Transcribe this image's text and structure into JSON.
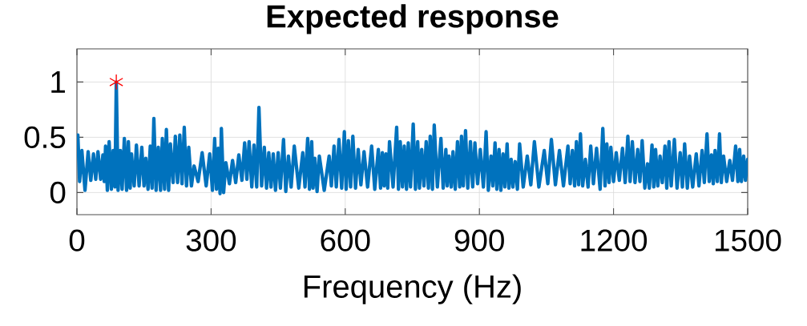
{
  "chart_data": {
    "type": "line",
    "title": "Expected response",
    "xlabel": "Frequency (Hz)",
    "xlim": [
      0,
      1500
    ],
    "ylim": [
      -0.2,
      1.3
    ],
    "xticks": [
      0,
      300,
      600,
      900,
      1200,
      1500
    ],
    "yticks": [
      0,
      0.5,
      1
    ],
    "grid": true,
    "series": [
      {
        "color": "#0072bd",
        "x": [
          0,
          2,
          6,
          11,
          18,
          25,
          31,
          37,
          42,
          47,
          53,
          58,
          61,
          64,
          68,
          72,
          77,
          81,
          85,
          88,
          92,
          97,
          101,
          106,
          111,
          115,
          119,
          122,
          128,
          133,
          139,
          145,
          150,
          154,
          159,
          164,
          168,
          172,
          177,
          182,
          187,
          191,
          196,
          200,
          205,
          209,
          215,
          220,
          225,
          230,
          235,
          240,
          245,
          250,
          256,
          262,
          271,
          280,
          289,
          297,
          303,
          308,
          312,
          316,
          320,
          323,
          328,
          333,
          341,
          348,
          355,
          362,
          369,
          375,
          380,
          385,
          391,
          396,
          402,
          407,
          413,
          419,
          424,
          429,
          434,
          439,
          444,
          450,
          455,
          462,
          467,
          473,
          479,
          486,
          496,
          505,
          510,
          516,
          520,
          525,
          528,
          532,
          537,
          542,
          553,
          564,
          569,
          575,
          580,
          586,
          592,
          598,
          602,
          607,
          612,
          617,
          623,
          629,
          635,
          642,
          650,
          659,
          666,
          674,
          679,
          683,
          687,
          691,
          695,
          699,
          707,
          715,
          719,
          723,
          728,
          732,
          737,
          741,
          746,
          752,
          757,
          762,
          766,
          771,
          776,
          781,
          786,
          790,
          795,
          799,
          806,
          814,
          819,
          825,
          828,
          832,
          837,
          841,
          846,
          851,
          856,
          860,
          864,
          869,
          874,
          880,
          885,
          890,
          896,
          902,
          909,
          915,
          920,
          926,
          930,
          935,
          939,
          944,
          948,
          953,
          957,
          962,
          966,
          971,
          975,
          980,
          985,
          990,
          998,
          1007,
          1015,
          1023,
          1033,
          1045,
          1053,
          1061,
          1070,
          1079,
          1088,
          1098,
          1103,
          1108,
          1113,
          1117,
          1122,
          1126,
          1131,
          1137,
          1143,
          1149,
          1155,
          1162,
          1170,
          1176,
          1181,
          1185,
          1190,
          1194,
          1200,
          1206,
          1213,
          1220,
          1226,
          1232,
          1237,
          1242,
          1248,
          1254,
          1259,
          1264,
          1270,
          1276,
          1280,
          1286,
          1290,
          1294,
          1299,
          1304,
          1309,
          1315,
          1319,
          1324,
          1329,
          1336,
          1342,
          1349,
          1354,
          1359,
          1365,
          1370,
          1377,
          1385,
          1391,
          1398,
          1403,
          1409,
          1414,
          1419,
          1423,
          1427,
          1432,
          1437,
          1441,
          1446,
          1453,
          1460,
          1466,
          1473,
          1478,
          1482,
          1486,
          1491,
          1495,
          1500
        ],
        "values": [
          0.45,
          0.52,
          0.1,
          0.38,
          0.02,
          0.37,
          0.11,
          0.35,
          0.12,
          0.37,
          0.12,
          0.34,
          0.1,
          0.42,
          0.02,
          0.46,
          0.03,
          0.38,
          0.05,
          1.0,
          0.02,
          0.38,
          0.03,
          0.49,
          0.02,
          0.46,
          0.04,
          0.35,
          0.06,
          0.43,
          0.06,
          0.41,
          0.06,
          0.31,
          0.03,
          0.42,
          0.04,
          0.67,
          0.02,
          0.41,
          0.02,
          0.49,
          0.03,
          0.57,
          0.02,
          0.44,
          0.09,
          0.51,
          0.09,
          0.52,
          0.08,
          0.59,
          0.06,
          0.41,
          0.06,
          0.24,
          0.1,
          0.36,
          0.06,
          0.35,
          0.02,
          0.49,
          0.03,
          0.4,
          -0.01,
          0.58,
          0.0,
          0.27,
          0.08,
          0.29,
          0.09,
          0.34,
          0.11,
          0.45,
          0.12,
          0.46,
          0.05,
          0.43,
          0.05,
          0.77,
          0.06,
          0.41,
          0.04,
          0.36,
          0.05,
          0.35,
          0.02,
          0.36,
          0.04,
          0.48,
          0.01,
          0.33,
          0.05,
          0.42,
          0.04,
          0.36,
          0.05,
          0.49,
          0.03,
          0.46,
          0.04,
          0.31,
          0.01,
          0.33,
          0.02,
          0.33,
          0.06,
          0.42,
          0.05,
          0.48,
          0.04,
          0.55,
          0.03,
          0.47,
          0.05,
          0.51,
          0.04,
          0.39,
          0.07,
          0.37,
          0.05,
          0.42,
          0.03,
          0.39,
          0.04,
          0.36,
          0.06,
          0.35,
          0.04,
          0.46,
          0.05,
          0.59,
          0.03,
          0.46,
          0.05,
          0.42,
          0.03,
          0.45,
          0.05,
          0.62,
          0.03,
          0.46,
          0.04,
          0.39,
          0.06,
          0.46,
          0.04,
          0.51,
          0.03,
          0.61,
          0.05,
          0.49,
          0.04,
          0.39,
          0.06,
          0.33,
          0.05,
          0.37,
          0.03,
          0.46,
          0.05,
          0.51,
          0.06,
          0.56,
          0.04,
          0.46,
          0.05,
          0.45,
          0.08,
          0.39,
          0.05,
          0.55,
          0.02,
          0.33,
          0.06,
          0.45,
          0.03,
          0.39,
          0.02,
          0.35,
          0.05,
          0.44,
          0.04,
          0.3,
          0.05,
          0.28,
          0.03,
          0.44,
          0.05,
          0.33,
          0.07,
          0.46,
          0.05,
          0.38,
          0.08,
          0.48,
          0.07,
          0.38,
          0.06,
          0.42,
          0.08,
          0.38,
          0.06,
          0.46,
          0.07,
          0.53,
          0.06,
          0.3,
          0.05,
          0.42,
          0.08,
          0.4,
          0.03,
          0.58,
          0.06,
          0.44,
          0.09,
          0.41,
          0.1,
          0.36,
          0.11,
          0.4,
          0.09,
          0.51,
          0.1,
          0.46,
          0.09,
          0.39,
          0.1,
          0.47,
          0.04,
          0.26,
          0.04,
          0.43,
          0.05,
          0.39,
          0.06,
          0.33,
          0.09,
          0.42,
          0.04,
          0.46,
          0.06,
          0.48,
          0.04,
          0.36,
          0.05,
          0.44,
          0.04,
          0.33,
          0.05,
          0.35,
          0.06,
          0.38,
          0.09,
          0.53,
          0.1,
          0.34,
          0.08,
          0.38,
          0.1,
          0.53,
          0.09,
          0.33,
          0.1,
          0.29,
          0.11,
          0.42,
          0.1,
          0.39,
          0.1,
          0.33,
          0.11,
          0.3
        ]
      },
      {
        "type": "scatter",
        "marker": "cross",
        "color": "#ff0000",
        "x": [
          88
        ],
        "values": [
          1.0
        ]
      }
    ]
  }
}
